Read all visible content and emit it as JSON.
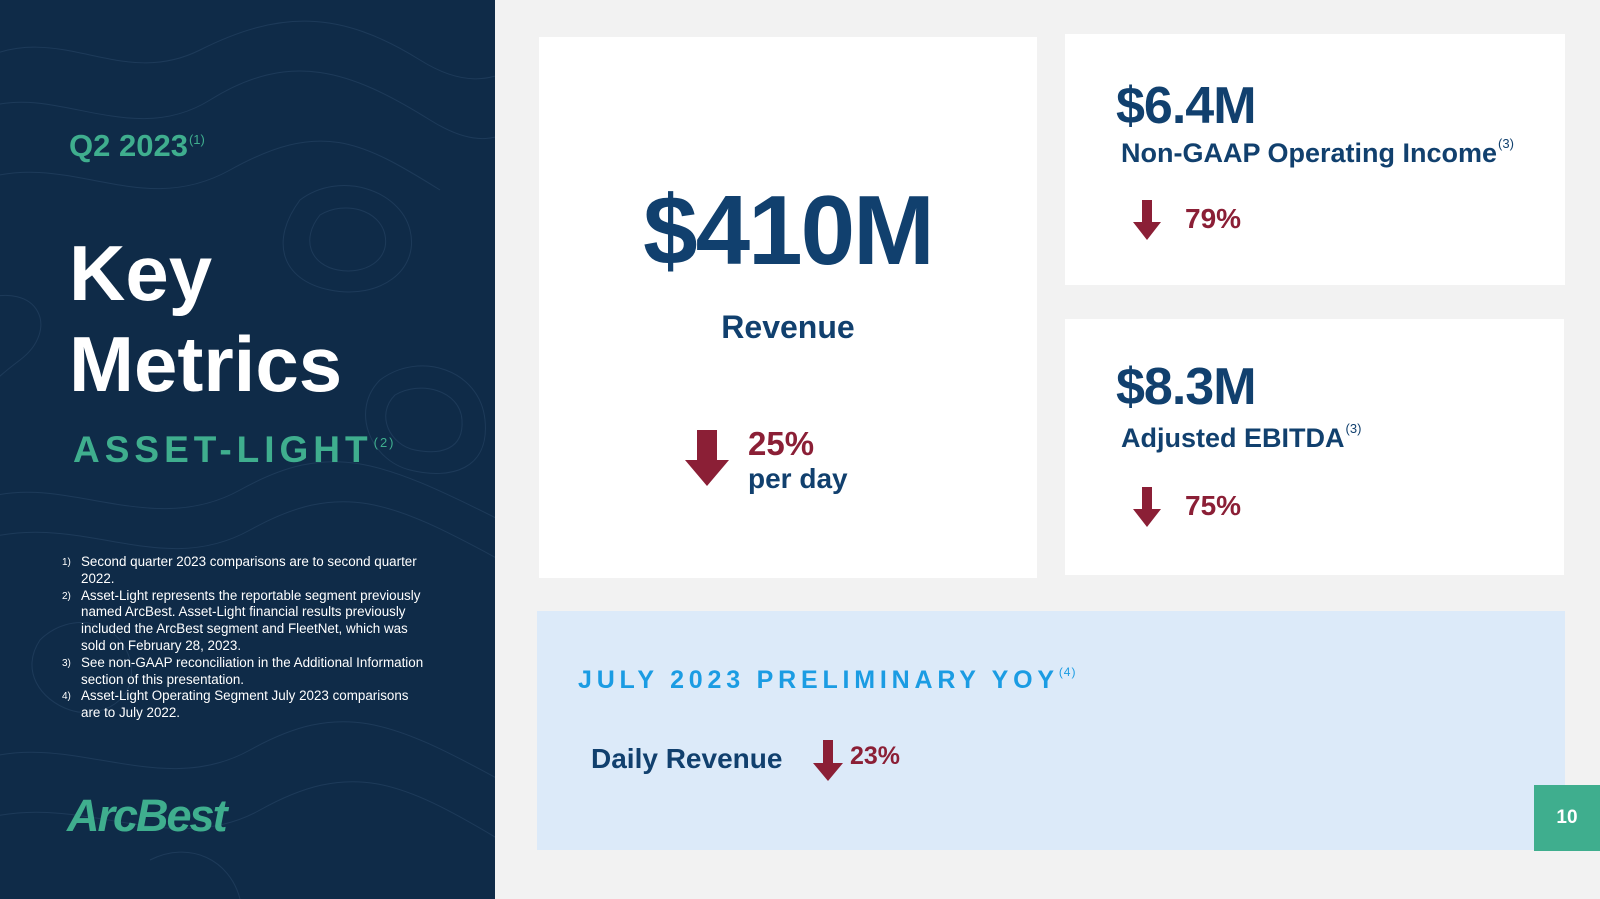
{
  "sidebar": {
    "quarter": "Q2 2023",
    "quarter_note": "(1)",
    "title_line1": "Key",
    "title_line2": "Metrics",
    "segment": "ASSET-LIGHT",
    "segment_note": "(2)",
    "footnotes": [
      {
        "num": "1)",
        "text": "Second quarter 2023 comparisons are to second quarter 2022."
      },
      {
        "num": "2)",
        "text": "Asset-Light represents the reportable segment previously named ArcBest. Asset-Light financial results previously included the ArcBest segment and FleetNet, which was sold on February 28, 2023."
      },
      {
        "num": "3)",
        "text": "See non-GAAP reconciliation in the Additional Information section of this presentation."
      },
      {
        "num": "4)",
        "text": "Asset-Light Operating Segment July 2023 comparisons are to July 2022."
      }
    ],
    "logo": "ArcBest"
  },
  "revenue": {
    "value": "$410M",
    "label": "Revenue",
    "change": "25%",
    "change_unit": "per day",
    "direction": "down-arrow-icon"
  },
  "operating_income": {
    "value": "$6.4M",
    "label": "Non-GAAP Operating Income",
    "note": "(3)",
    "change": "79%",
    "direction": "down-arrow-icon"
  },
  "ebitda": {
    "value": "$8.3M",
    "label": "Adjusted EBITDA",
    "note": "(3)",
    "change": "75%",
    "direction": "down-arrow-icon"
  },
  "july": {
    "heading": "JULY 2023 PRELIMINARY YOY",
    "note": "(4)",
    "label": "Daily Revenue",
    "change": "23%",
    "direction": "down-arrow-icon"
  },
  "page_number": "10",
  "colors": {
    "navy": "#0f2b48",
    "teal": "#3fae8e",
    "dark_blue": "#11406e",
    "red": "#8b1f36",
    "light_blue": "#dceaf9",
    "bright_blue": "#1b9ce3"
  }
}
